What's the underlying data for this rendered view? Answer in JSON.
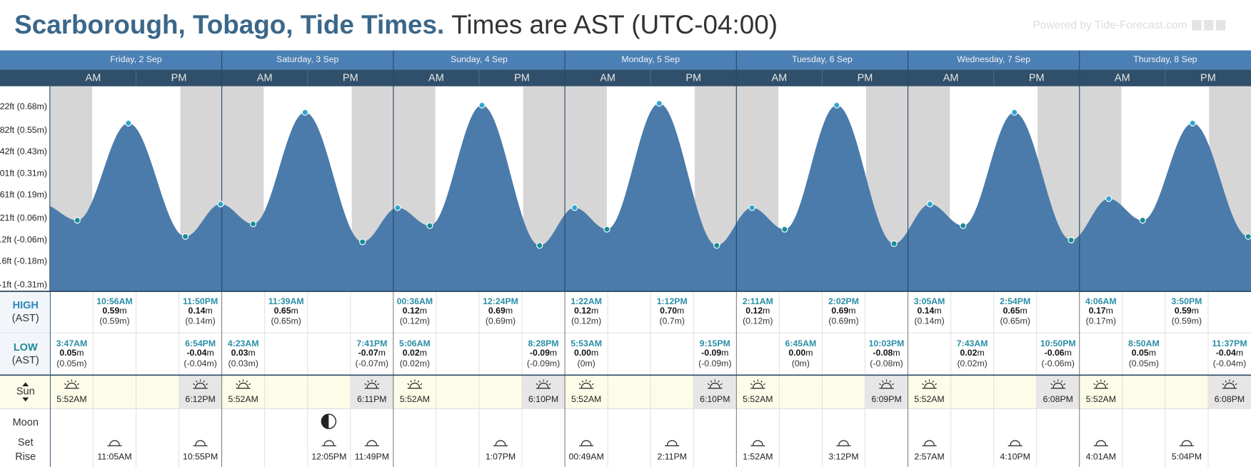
{
  "header": {
    "title": "Scarborough, Tobago, Tide Times.",
    "subtitle": "Times are AST (UTC-04:00)",
    "powered_by": "Powered by Tide-Forecast.com"
  },
  "halves": [
    "AM",
    "PM"
  ],
  "unit": "m",
  "labels": {
    "high": "HIGH",
    "low": "LOW",
    "ast": "(AST)",
    "sun": "Sun",
    "moon": "Moon",
    "set": "Set",
    "rise": "Rise"
  },
  "chart_data": {
    "type": "area",
    "color": "#4a7bab",
    "night_color": "#d6d6d6",
    "high_color": "#2fa6d0",
    "low_color": "#1a8c96",
    "ylim": [
      -0.345,
      0.795
    ],
    "yticks": [
      {
        "value": -0.31,
        "label": "-1ft (-0.31m)"
      },
      {
        "value": -0.18,
        "label": ".6ft (-0.18m)"
      },
      {
        "value": -0.06,
        "label": ".2ft (-0.06m)"
      },
      {
        "value": 0.06,
        "label": "21ft (0.06m)"
      },
      {
        "value": 0.19,
        "label": "61ft (0.19m)"
      },
      {
        "value": 0.31,
        "label": "01ft (0.31m)"
      },
      {
        "value": 0.43,
        "label": "42ft (0.43m)"
      },
      {
        "value": 0.55,
        "label": "82ft (0.55m)"
      },
      {
        "value": 0.68,
        "label": "22ft (0.68m)"
      }
    ]
  },
  "days": [
    {
      "label": "Friday, 2 Sep",
      "high": [
        {
          "time": "10:56AM",
          "height": 0.59,
          "paren": "(0.59m)"
        },
        {
          "time": "11:50PM",
          "height": 0.14,
          "paren": "(0.14m)"
        }
      ],
      "low": [
        {
          "time": "3:47AM",
          "height": 0.05,
          "paren": "(0.05m)"
        },
        {
          "time": "6:54PM",
          "height": -0.04,
          "paren": "(-0.04m)"
        }
      ],
      "sunrise": "5:52AM",
      "sunset": "6:12PM",
      "moon": [
        "11:05AM",
        "10:55PM"
      ]
    },
    {
      "label": "Saturday, 3 Sep",
      "high": [
        {
          "time": "11:39AM",
          "height": 0.65,
          "paren": "(0.65m)"
        }
      ],
      "low": [
        {
          "time": "4:23AM",
          "height": 0.03,
          "paren": "(0.03m)"
        },
        {
          "time": "7:41PM",
          "height": -0.07,
          "paren": "(-0.07m)"
        }
      ],
      "sunrise": "5:52AM",
      "sunset": "6:11PM",
      "moon": [
        "12:05PM",
        "11:49PM"
      ]
    },
    {
      "label": "Sunday, 4 Sep",
      "high": [
        {
          "time": "00:36AM",
          "height": 0.12,
          "paren": "(0.12m)"
        },
        {
          "time": "12:24PM",
          "height": 0.69,
          "paren": "(0.69m)"
        }
      ],
      "low": [
        {
          "time": "5:06AM",
          "height": 0.02,
          "paren": "(0.02m)"
        },
        {
          "time": "8:28PM",
          "height": -0.09,
          "paren": "(-0.09m)"
        }
      ],
      "sunrise": "5:52AM",
      "sunset": "6:10PM",
      "moon": [
        "1:07PM"
      ]
    },
    {
      "label": "Monday, 5 Sep",
      "high": [
        {
          "time": "1:22AM",
          "height": 0.12,
          "paren": "(0.12m)"
        },
        {
          "time": "1:12PM",
          "height": 0.7,
          "label": "0.70",
          "paren": "(0.7m)"
        }
      ],
      "low": [
        {
          "time": "5:53AM",
          "height": 0,
          "label": "0.00",
          "paren": "(0m)"
        },
        {
          "time": "9:15PM",
          "height": -0.09,
          "paren": "(-0.09m)"
        }
      ],
      "sunrise": "5:52AM",
      "sunset": "6:10PM",
      "moon": [
        "00:49AM",
        "2:11PM"
      ]
    },
    {
      "label": "Tuesday, 6 Sep",
      "high": [
        {
          "time": "2:11AM",
          "height": 0.12,
          "paren": "(0.12m)"
        },
        {
          "time": "2:02PM",
          "height": 0.69,
          "paren": "(0.69m)"
        }
      ],
      "low": [
        {
          "time": "6:45AM",
          "height": 0,
          "label": "0.00",
          "paren": "(0m)"
        },
        {
          "time": "10:03PM",
          "height": -0.08,
          "paren": "(-0.08m)"
        }
      ],
      "sunrise": "5:52AM",
      "sunset": "6:09PM",
      "moon": [
        "1:52AM",
        "3:12PM"
      ]
    },
    {
      "label": "Wednesday, 7 Sep",
      "high": [
        {
          "time": "3:05AM",
          "height": 0.14,
          "paren": "(0.14m)"
        },
        {
          "time": "2:54PM",
          "height": 0.65,
          "paren": "(0.65m)"
        }
      ],
      "low": [
        {
          "time": "7:43AM",
          "height": 0.02,
          "paren": "(0.02m)"
        },
        {
          "time": "10:50PM",
          "height": -0.06,
          "paren": "(-0.06m)"
        }
      ],
      "sunrise": "5:52AM",
      "sunset": "6:08PM",
      "moon": [
        "2:57AM",
        "4:10PM"
      ]
    },
    {
      "label": "Thursday, 8 Sep",
      "high": [
        {
          "time": "4:06AM",
          "height": 0.17,
          "paren": "(0.17m)"
        },
        {
          "time": "3:50PM",
          "height": 0.59,
          "paren": "(0.59m)"
        }
      ],
      "low": [
        {
          "time": "8:50AM",
          "height": 0.05,
          "paren": "(0.05m)"
        },
        {
          "time": "11:37PM",
          "height": -0.04,
          "paren": "(-0.04m)"
        }
      ],
      "sunrise": "5:52AM",
      "sunset": "6:08PM",
      "moon": [
        "4:01AM",
        "5:04PM"
      ]
    }
  ]
}
